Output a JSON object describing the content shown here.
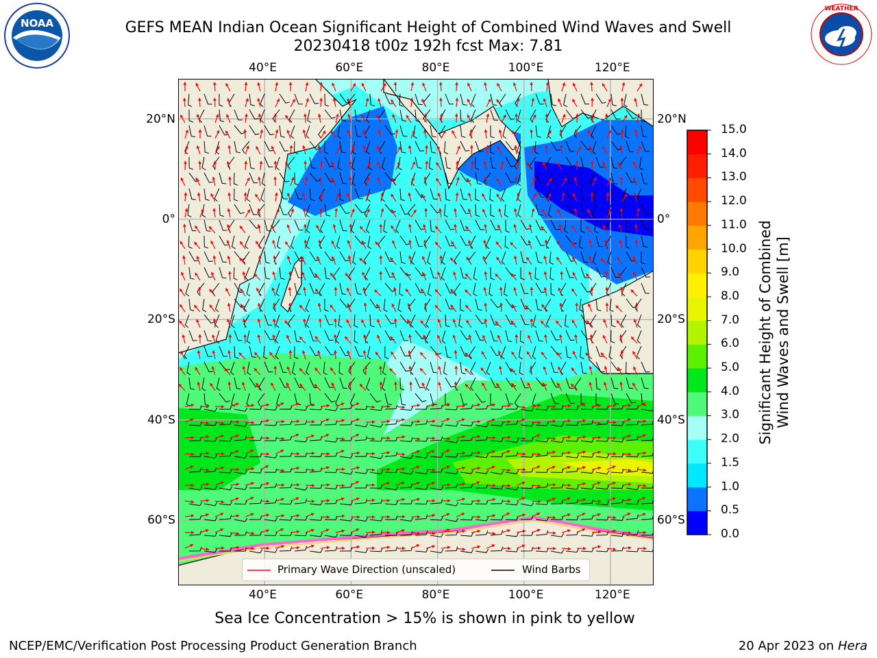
{
  "title_line1": "GEFS MEAN Indian Ocean Significant Height of Combined Wind Waves and Swell",
  "title_line2": "20230418 t00z 192h fcst   Max: 7.81",
  "logos": {
    "left": "NOAA",
    "right": "NATIONAL WEATHER SERVICE"
  },
  "map": {
    "lon_ticks": [
      "40°E",
      "60°E",
      "80°E",
      "100°E",
      "120°E"
    ],
    "lat_ticks": [
      "20°N",
      "0°",
      "20°S",
      "40°S",
      "60°S"
    ],
    "lon_values": [
      40,
      60,
      80,
      100,
      120
    ],
    "lat_values": [
      20,
      0,
      -20,
      -40,
      -60
    ],
    "extent": {
      "lon": [
        20,
        130
      ],
      "lat": [
        -73,
        28
      ]
    },
    "legend": {
      "wave_label": "Primary Wave Direction (unscaled)",
      "wind_label": "Wind Barbs",
      "wave_color": "#ff0000",
      "wind_color": "#000000"
    },
    "land_color": "#efecdc",
    "max_value": 7.81
  },
  "colorbar": {
    "title_line1": "Significant Height of Combined",
    "title_line2": "Wind Waves and Swell [m]",
    "labels": [
      "15.0",
      "14.0",
      "13.0",
      "12.0",
      "11.0",
      "10.0",
      "9.0",
      "8.0",
      "7.0",
      "6.0",
      "5.0",
      "4.0",
      "3.0",
      "2.0",
      "1.5",
      "1.0",
      "0.5",
      "0.0"
    ],
    "colors": [
      "#0000ff",
      "#0a74ff",
      "#00e8ff",
      "#3dfff7",
      "#a6fff7",
      "#4ff97a",
      "#00e81c",
      "#5df000",
      "#b4f400",
      "#e8f400",
      "#fff000",
      "#ffd200",
      "#ffa400",
      "#ff7a00",
      "#ff4a00",
      "#ff1e00",
      "#ff0000"
    ]
  },
  "subtitle": "Sea Ice Concentration > 15% is shown in pink to yellow",
  "footer_left": "NCEP/EMC/Verification Post Processing Product Generation Branch",
  "footer_right_date": "20 Apr 2023 on ",
  "footer_right_host": "Hera"
}
